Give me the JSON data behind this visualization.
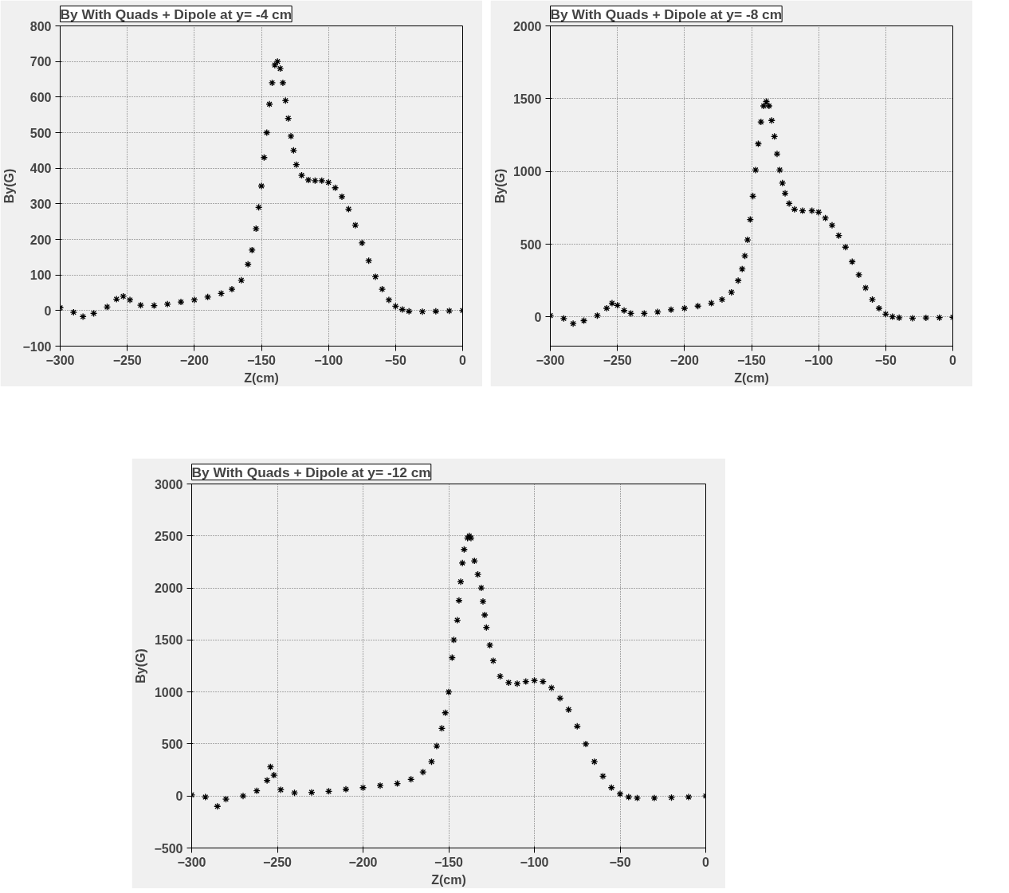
{
  "chart_data": [
    {
      "type": "scatter",
      "title": "By With Quads + Dipole at y= -4 cm",
      "xlabel": "Z(cm)",
      "ylabel": "By(G)",
      "marker": "cross",
      "grid": true,
      "xlim": [
        -300,
        0
      ],
      "xticks": [
        -300,
        -250,
        -200,
        -150,
        -100,
        -50,
        0
      ],
      "ylim": [
        -100,
        800
      ],
      "yticks": [
        -100,
        0,
        100,
        200,
        300,
        400,
        500,
        600,
        700,
        800
      ],
      "series": [
        {
          "color": "#000000",
          "x": [
            -300,
            -290,
            -283,
            -275,
            -265,
            -258,
            -253,
            -248,
            -240,
            -230,
            -220,
            -210,
            -200,
            -190,
            -180,
            -172,
            -165,
            -160,
            -157,
            -154,
            -152,
            -150,
            -148,
            -146,
            -144,
            -142,
            -140,
            -138,
            -136,
            -134,
            -132,
            -130,
            -128,
            -126,
            -124,
            -120,
            -115,
            -110,
            -105,
            -100,
            -95,
            -90,
            -85,
            -80,
            -75,
            -70,
            -65,
            -60,
            -55,
            -50,
            -45,
            -40,
            -30,
            -20,
            -10,
            0
          ],
          "values": [
            8,
            -5,
            -17,
            -8,
            10,
            32,
            40,
            30,
            15,
            14,
            18,
            24,
            30,
            38,
            48,
            60,
            85,
            130,
            170,
            230,
            290,
            350,
            430,
            500,
            580,
            640,
            690,
            700,
            680,
            640,
            590,
            540,
            490,
            450,
            410,
            380,
            367,
            365,
            365,
            360,
            345,
            320,
            285,
            240,
            190,
            140,
            95,
            60,
            30,
            12,
            3,
            -2,
            -3,
            -2,
            -1,
            0
          ]
        }
      ]
    },
    {
      "type": "scatter",
      "title": "By With Quads + Dipole at y= -8 cm",
      "xlabel": "Z(cm)",
      "ylabel": "By(G)",
      "marker": "cross",
      "grid": true,
      "xlim": [
        -300,
        0
      ],
      "xticks": [
        -300,
        -250,
        -200,
        -150,
        -100,
        -50,
        0
      ],
      "ylim": [
        -200,
        2000
      ],
      "yticks": [
        0,
        500,
        1000,
        1500,
        2000
      ],
      "series": [
        {
          "color": "#000000",
          "x": [
            -300,
            -290,
            -283,
            -275,
            -265,
            -258,
            -254,
            -250,
            -245,
            -240,
            -230,
            -220,
            -210,
            -200,
            -190,
            -180,
            -172,
            -165,
            -160,
            -157,
            -155,
            -153,
            -151,
            -149,
            -147,
            -145,
            -143,
            -141,
            -139,
            -137,
            -135,
            -133,
            -131,
            -129,
            -127,
            -125,
            -122,
            -118,
            -112,
            -105,
            -100,
            -95,
            -90,
            -85,
            -80,
            -75,
            -70,
            -65,
            -60,
            -55,
            -50,
            -45,
            -40,
            -30,
            -20,
            -10,
            0
          ],
          "values": [
            10,
            -10,
            -45,
            -25,
            10,
            60,
            95,
            80,
            45,
            25,
            25,
            35,
            50,
            60,
            75,
            95,
            120,
            170,
            250,
            330,
            420,
            530,
            670,
            830,
            1010,
            1190,
            1340,
            1450,
            1480,
            1450,
            1350,
            1240,
            1120,
            1010,
            920,
            850,
            780,
            740,
            730,
            730,
            720,
            680,
            630,
            560,
            480,
            380,
            290,
            200,
            120,
            60,
            20,
            2,
            -5,
            -8,
            -6,
            -4,
            -2
          ]
        }
      ]
    },
    {
      "type": "scatter",
      "title": "By With Quads + Dipole at y= -12 cm",
      "xlabel": "Z(cm)",
      "ylabel": "By(G)",
      "marker": "cross",
      "grid": true,
      "xlim": [
        -300,
        0
      ],
      "xticks": [
        -300,
        -250,
        -200,
        -150,
        -100,
        -50,
        0
      ],
      "ylim": [
        -500,
        3000
      ],
      "yticks": [
        -500,
        0,
        500,
        1000,
        1500,
        2000,
        2500,
        3000
      ],
      "series": [
        {
          "color": "#000000",
          "x": [
            -300,
            -292,
            -285,
            -280,
            -270,
            -262,
            -256,
            -254,
            -252,
            -248,
            -240,
            -230,
            -220,
            -210,
            -200,
            -190,
            -180,
            -172,
            -165,
            -160,
            -157,
            -154,
            -152,
            -150,
            -148,
            -147,
            -145,
            -144,
            -143,
            -142,
            -141,
            -139,
            -138,
            -137,
            -135,
            -133,
            -131,
            -130,
            -129,
            -128,
            -126,
            -124,
            -120,
            -115,
            -110,
            -105,
            -100,
            -95,
            -90,
            -85,
            -80,
            -75,
            -70,
            -65,
            -60,
            -55,
            -50,
            -45,
            -40,
            -30,
            -20,
            -10,
            0
          ],
          "values": [
            10,
            -10,
            -100,
            -30,
            0,
            50,
            150,
            280,
            200,
            60,
            30,
            35,
            45,
            65,
            80,
            100,
            120,
            160,
            230,
            330,
            480,
            650,
            800,
            1000,
            1330,
            1500,
            1690,
            1880,
            2060,
            2240,
            2370,
            2480,
            2500,
            2480,
            2260,
            2130,
            2000,
            1870,
            1740,
            1620,
            1450,
            1300,
            1150,
            1090,
            1080,
            1100,
            1110,
            1100,
            1040,
            940,
            830,
            670,
            500,
            330,
            190,
            80,
            20,
            -10,
            -20,
            -20,
            -15,
            -10,
            0
          ]
        }
      ]
    }
  ]
}
